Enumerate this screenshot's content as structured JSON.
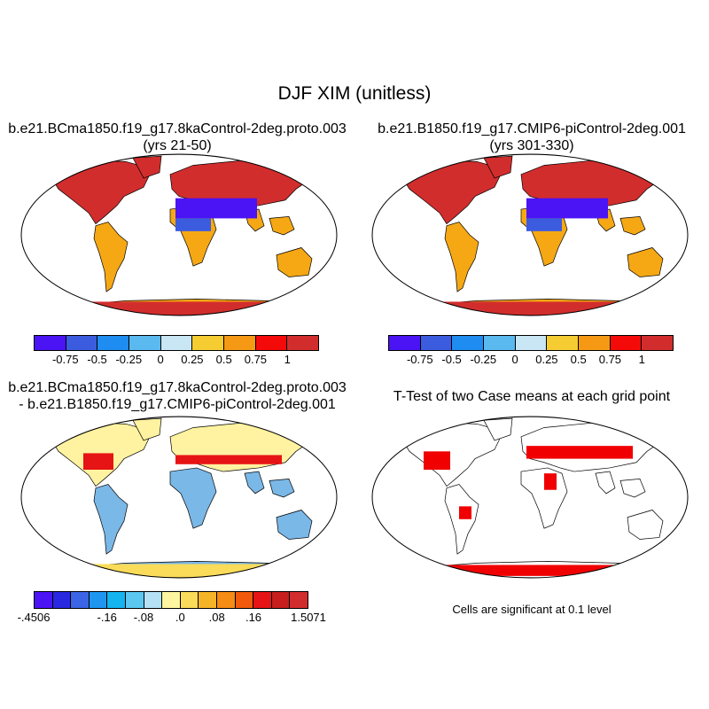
{
  "figure": {
    "title": "DJF XIM (unitless)"
  },
  "panels": [
    {
      "id": "case1",
      "title_line1": "b.e21.BCma1850.f19_g17.8kaControl-2deg.proto.003",
      "title_line2": "(yrs 21-50)"
    },
    {
      "id": "case2",
      "title_line1": "b.e21.B1850.f19_g17.CMIP6-piControl-2deg.001",
      "title_line2": "(yrs 301-330)"
    },
    {
      "id": "diff",
      "title_line1": "b.e21.BCma1850.f19_g17.8kaControl-2deg.proto.003",
      "title_line2": "- b.e21.B1850.f19_g17.CMIP6-piControl-2deg.001"
    },
    {
      "id": "ttest",
      "title_line1": "T-Test of two Case means at each grid point",
      "note": "Cells are significant at 0.1 level"
    }
  ],
  "colorbars": {
    "main": {
      "colors": [
        "#4a14f5",
        "#3c5ce0",
        "#1e8cf0",
        "#5ab9ee",
        "#c8e6f4",
        "#f5cd32",
        "#f59914",
        "#f50a0a",
        "#d22d2d"
      ],
      "labels": [
        "-0.75",
        "-0.5",
        "-0.25",
        "0",
        "0.25",
        "0.5",
        "0.75",
        "1"
      ]
    },
    "diff": {
      "colors": [
        "#4a14f5",
        "#2828e0",
        "#3c64e6",
        "#1e96f0",
        "#14b4f0",
        "#5ac8f0",
        "#b4e1f5",
        "#fff5a0",
        "#fadc5a",
        "#f5b428",
        "#f58c14",
        "#f05a0a",
        "#e61414",
        "#c81e1e",
        "#d22d2d"
      ],
      "labels": [
        "-.4506",
        "-.16",
        "-.08",
        ".0",
        ".08",
        ".16",
        "1.5071"
      ]
    },
    "ttest": {
      "significant_color": "#f00000"
    }
  }
}
